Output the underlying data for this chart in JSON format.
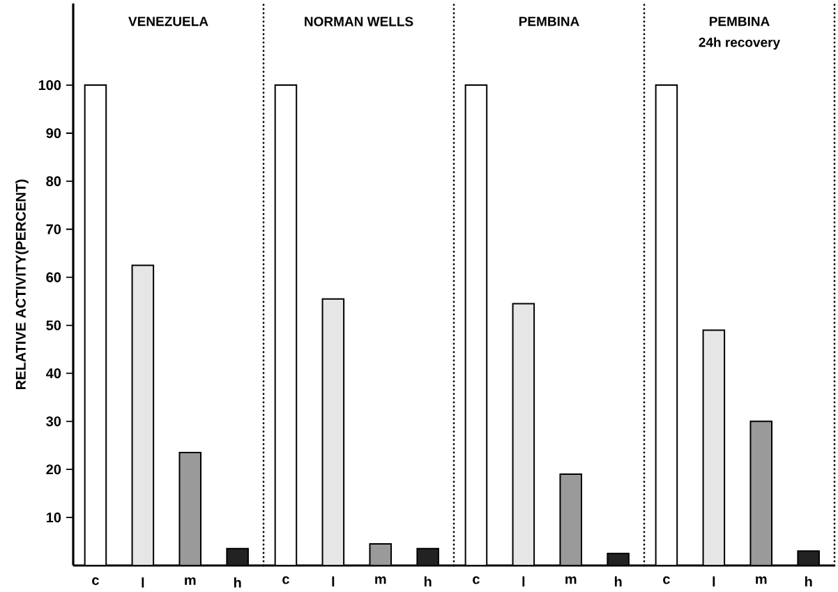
{
  "chart_data": [
    {
      "type": "bar",
      "title": "VENEZUELA",
      "ylabel": "RELATIVE ACTIVITY(PERCENT)",
      "categories": [
        "c",
        "l",
        "m",
        "h"
      ],
      "values": [
        100,
        62.5,
        23.5,
        3.5
      ],
      "colors": [
        "#ffffff",
        "#e6e6e6",
        "#9a9a9a",
        "#222222"
      ],
      "ylim": [
        0,
        117
      ],
      "yticks": [
        10,
        20,
        30,
        40,
        50,
        60,
        70,
        80,
        90,
        100
      ]
    },
    {
      "type": "bar",
      "title": "NORMAN WELLS",
      "categories": [
        "c",
        "l",
        "m",
        "h"
      ],
      "values": [
        100,
        55.5,
        4.5,
        3.5
      ],
      "colors": [
        "#ffffff",
        "#e6e6e6",
        "#9a9a9a",
        "#222222"
      ],
      "ylim": [
        0,
        117
      ],
      "tick_labels": "x"
    },
    {
      "type": "bar",
      "title": "PEMBINA",
      "categories": [
        "c",
        "l",
        "m",
        "h"
      ],
      "values": [
        100,
        54.5,
        19,
        2.5
      ],
      "colors": [
        "#ffffff",
        "#e6e6e6",
        "#9a9a9a",
        "#222222"
      ],
      "ylim": [
        0,
        117
      ],
      "tick_labels": "x"
    },
    {
      "type": "bar",
      "title": "PEMBINA",
      "subtitle": "24h recovery",
      "categories": [
        "c",
        "l",
        "m",
        "h"
      ],
      "values": [
        100,
        49,
        30,
        3
      ],
      "colors": [
        "#ffffff",
        "#e6e6e6",
        "#9a9a9a",
        "#222222"
      ],
      "ylim": [
        0,
        117
      ],
      "tick_labels": "x"
    }
  ]
}
